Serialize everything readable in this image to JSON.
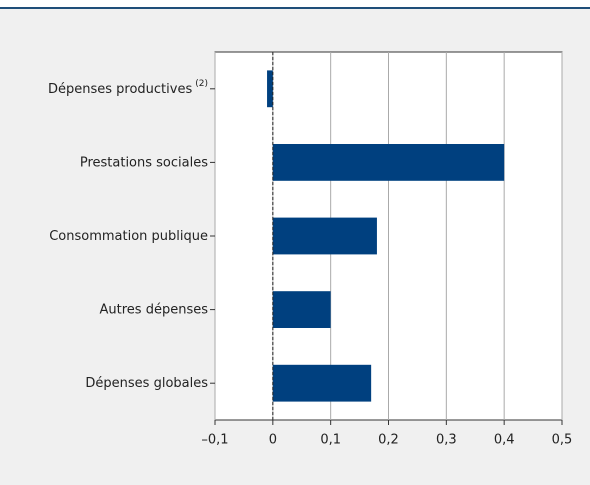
{
  "chart_data": {
    "type": "barh",
    "categories": [
      "Dépenses productives",
      "Prestations sociales",
      "Consommation publique",
      "Autres dépenses",
      "Dépenses globales"
    ],
    "category_superscripts": [
      "(2)",
      null,
      null,
      null,
      null
    ],
    "values": [
      -0.01,
      0.4,
      0.18,
      0.1,
      0.17
    ],
    "color": "#00407f",
    "xlim": [
      -0.1,
      0.5
    ],
    "xticks": [
      {
        "value": -0.1,
        "label": "–0,1"
      },
      0,
      {
        "value": 0.1,
        "label": "0,1"
      },
      {
        "value": 0.2,
        "label": "0,2"
      },
      {
        "value": 0.3,
        "label": "0,3"
      },
      {
        "value": 0.4,
        "label": "0,4"
      },
      {
        "value": 0.5,
        "label": "0,5"
      }
    ],
    "grid": true
  }
}
